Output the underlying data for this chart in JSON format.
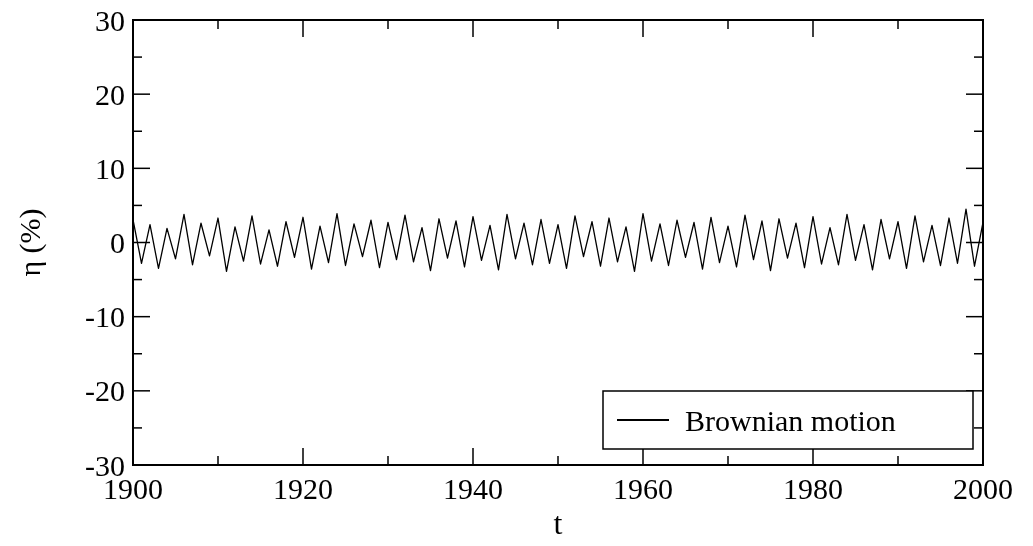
{
  "chart_data": {
    "type": "line",
    "xlabel": "t",
    "ylabel": "η (%)",
    "x": [
      1900,
      1901,
      1902,
      1903,
      1904,
      1905,
      1906,
      1907,
      1908,
      1909,
      1910,
      1911,
      1912,
      1913,
      1914,
      1915,
      1916,
      1917,
      1918,
      1919,
      1920,
      1921,
      1922,
      1923,
      1924,
      1925,
      1926,
      1927,
      1928,
      1929,
      1930,
      1931,
      1932,
      1933,
      1934,
      1935,
      1936,
      1937,
      1938,
      1939,
      1940,
      1941,
      1942,
      1943,
      1944,
      1945,
      1946,
      1947,
      1948,
      1949,
      1950,
      1951,
      1952,
      1953,
      1954,
      1955,
      1956,
      1957,
      1958,
      1959,
      1960,
      1961,
      1962,
      1963,
      1964,
      1965,
      1966,
      1967,
      1968,
      1969,
      1970,
      1971,
      1972,
      1973,
      1974,
      1975,
      1976,
      1977,
      1978,
      1979,
      1980,
      1981,
      1982,
      1983,
      1984,
      1985,
      1986,
      1987,
      1988,
      1989,
      1990,
      1991,
      1992,
      1993,
      1994,
      1995,
      1996,
      1997,
      1998,
      1999,
      2000
    ],
    "series": [
      {
        "name": "Brownian motion",
        "color": "#000000",
        "values": [
          3.1,
          -2.8,
          2.4,
          -3.5,
          1.9,
          -2.2,
          3.8,
          -3.0,
          2.6,
          -1.8,
          3.3,
          -3.9,
          2.1,
          -2.5,
          3.6,
          -2.9,
          1.7,
          -3.2,
          2.8,
          -2.0,
          3.4,
          -3.6,
          2.2,
          -2.7,
          3.9,
          -3.1,
          2.5,
          -1.9,
          3.0,
          -3.4,
          2.7,
          -2.3,
          3.7,
          -2.6,
          2.0,
          -3.8,
          3.2,
          -2.1,
          2.9,
          -3.3,
          3.5,
          -2.4,
          2.3,
          -3.7,
          3.8,
          -2.2,
          2.6,
          -3.0,
          3.1,
          -2.8,
          2.4,
          -3.5,
          3.6,
          -1.9,
          2.8,
          -3.2,
          3.3,
          -2.6,
          2.1,
          -3.9,
          3.9,
          -2.5,
          2.5,
          -3.1,
          3.0,
          -2.0,
          2.7,
          -3.6,
          3.4,
          -2.7,
          2.2,
          -3.3,
          3.7,
          -2.3,
          2.9,
          -3.8,
          3.2,
          -2.1,
          2.6,
          -3.4,
          3.5,
          -2.9,
          2.0,
          -3.0,
          3.8,
          -2.4,
          2.4,
          -3.7,
          3.1,
          -2.2,
          2.8,
          -3.5,
          3.6,
          -2.6,
          2.3,
          -3.1,
          3.3,
          -2.8,
          4.5,
          -3.2,
          2.7
        ]
      }
    ],
    "xlim": [
      1900,
      2000
    ],
    "xticks": [
      1900,
      {
        "value": 1910,
        "label": null
      },
      1920,
      {
        "value": 1930,
        "label": null
      },
      1940,
      {
        "value": 1950,
        "label": null
      },
      1960,
      {
        "value": 1970,
        "label": null
      },
      1980,
      {
        "value": 1990,
        "label": null
      },
      2000
    ],
    "ylim": [
      -30,
      30
    ],
    "yticks": [
      -30,
      {
        "value": -25,
        "label": null
      },
      -20,
      {
        "value": -15,
        "label": null
      },
      -10,
      {
        "value": -5,
        "label": null
      },
      0,
      {
        "value": 5,
        "label": null
      },
      10,
      {
        "value": 15,
        "label": null
      },
      20,
      {
        "value": 25,
        "label": null
      },
      30
    ],
    "legend": "bottom right",
    "line_style": "solid"
  }
}
